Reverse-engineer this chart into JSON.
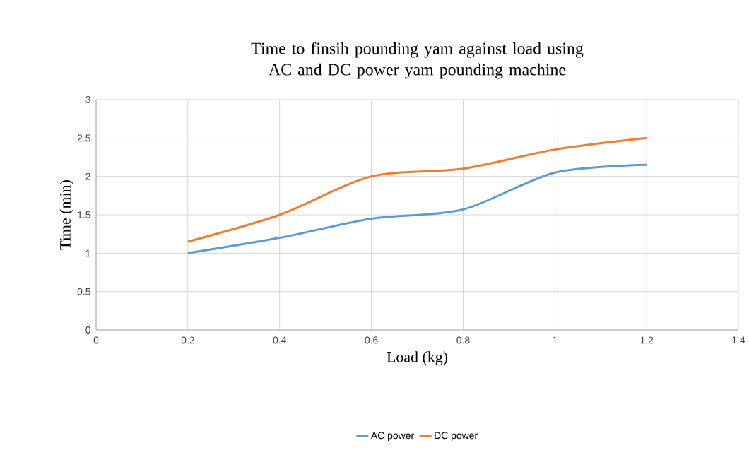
{
  "chart_data": {
    "type": "line",
    "title": "Time to finsih pounding yam against load using AC and DC power yam pounding machine",
    "xlabel": "Load (kg)",
    "ylabel": "Time (min)",
    "x": [
      0.2,
      0.4,
      0.6,
      0.8,
      1.0,
      1.2
    ],
    "series": [
      {
        "name": "AC power",
        "color": "#5b9bd5",
        "values": [
          1.0,
          1.2,
          1.45,
          1.57,
          2.05,
          2.15
        ]
      },
      {
        "name": "DC power",
        "color": "#ed7d31",
        "values": [
          1.15,
          1.5,
          2.0,
          2.1,
          2.35,
          2.5
        ]
      }
    ],
    "xlim": [
      0,
      1.4
    ],
    "xticks": [
      0,
      0.2,
      0.4,
      0.6,
      0.8,
      1,
      1.2,
      1.4
    ],
    "ylim": [
      0,
      3
    ],
    "yticks": [
      0,
      0.5,
      1,
      1.5,
      2,
      2.5,
      3
    ],
    "grid": true,
    "legend": "bottom",
    "marker": "none",
    "line_style": "solid"
  }
}
